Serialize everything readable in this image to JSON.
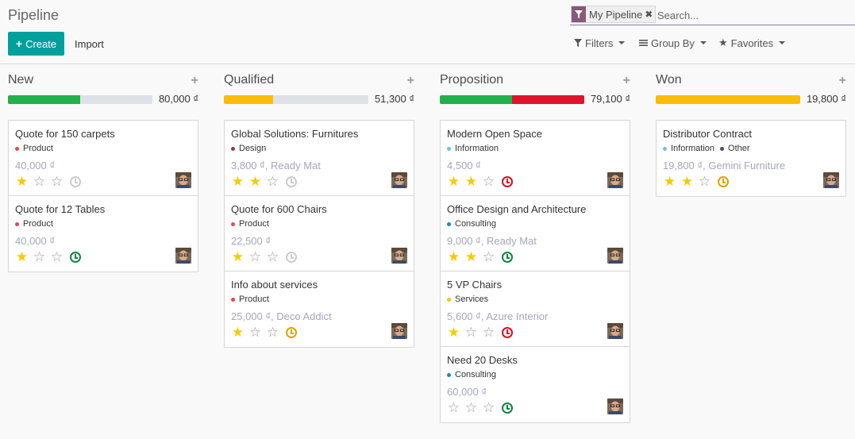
{
  "header": {
    "title": "Pipeline",
    "create_label": "Create",
    "import_label": "Import"
  },
  "search": {
    "facet_label": "My Pipeline",
    "placeholder": "Search...",
    "filters_label": "Filters",
    "groupby_label": "Group By",
    "favorites_label": "Favorites"
  },
  "colors": {
    "primary": "#00a09d",
    "facet": "#875a7b",
    "star": "#f3cc00",
    "progress_green": "#21b14a",
    "progress_red": "#e0132d",
    "progress_yellow": "#fbbd08"
  },
  "columns": [
    {
      "title": "New",
      "total": "80,000 ₫",
      "progress": [
        {
          "color": "#21b14a",
          "fraction": 0.5
        }
      ],
      "cards": [
        {
          "title": "Quote for 150 carpets",
          "tags": [
            {
              "label": "Product",
              "color": "#e9464d"
            }
          ],
          "revenue": "40,000 ₫",
          "stars": 1,
          "activity": "none"
        },
        {
          "title": "Quote for 12 Tables",
          "tags": [
            {
              "label": "Product",
              "color": "#e9464d"
            }
          ],
          "revenue": "40,000 ₫",
          "stars": 1,
          "activity": "planned"
        }
      ]
    },
    {
      "title": "Qualified",
      "total": "51,300 ₫",
      "progress": [
        {
          "color": "#fbbd08",
          "fraction": 0.34
        }
      ],
      "cards": [
        {
          "title": "Global Solutions: Furnitures",
          "tags": [
            {
              "label": "Design",
              "color": "#8a3a5e"
            }
          ],
          "revenue": "3,800 ₫, Ready Mat",
          "stars": 2,
          "activity": "none"
        },
        {
          "title": "Quote for 600 Chairs",
          "tags": [
            {
              "label": "Product",
              "color": "#e9464d"
            }
          ],
          "revenue": "22,500 ₫",
          "stars": 1,
          "activity": "none"
        },
        {
          "title": "Info about services",
          "tags": [
            {
              "label": "Product",
              "color": "#e9464d"
            }
          ],
          "revenue": "25,000 ₫, Deco Addict",
          "stars": 1,
          "activity": "today"
        }
      ]
    },
    {
      "title": "Proposition",
      "total": "79,100 ₫",
      "progress": [
        {
          "color": "#21b14a",
          "fraction": 0.5
        },
        {
          "color": "#e0132d",
          "fraction": 0.5
        }
      ],
      "cards": [
        {
          "title": "Modern Open Space",
          "tags": [
            {
              "label": "Information",
              "color": "#6cc1ed"
            }
          ],
          "revenue": "4,500 ₫",
          "stars": 2,
          "activity": "overdue"
        },
        {
          "title": "Office Design and Architecture",
          "tags": [
            {
              "label": "Consulting",
              "color": "#1a8bb0"
            }
          ],
          "revenue": "9,000 ₫, Ready Mat",
          "stars": 2,
          "activity": "planned"
        },
        {
          "title": "5 VP Chairs",
          "tags": [
            {
              "label": "Services",
              "color": "#f4c609"
            }
          ],
          "revenue": "5,600 ₫, Azure Interior",
          "stars": 1,
          "activity": "overdue"
        },
        {
          "title": "Need 20 Desks",
          "tags": [
            {
              "label": "Consulting",
              "color": "#1a8bb0"
            }
          ],
          "revenue": "60,000 ₫",
          "stars": 0,
          "activity": "planned"
        }
      ]
    },
    {
      "title": "Won",
      "total": "19,800 ₫",
      "progress": [
        {
          "color": "#fbbd08",
          "fraction": 1.0
        }
      ],
      "cards": [
        {
          "title": "Distributor Contract",
          "tags": [
            {
              "label": "Information",
              "color": "#6cc1ed"
            },
            {
              "label": "Other",
              "color": "#4c4c6c"
            }
          ],
          "revenue": "19,800 ₫, Gemini Furniture",
          "stars": 2,
          "activity": "today"
        }
      ]
    }
  ]
}
